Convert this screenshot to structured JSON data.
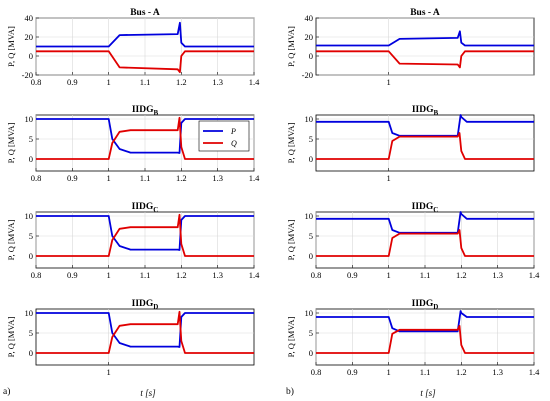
{
  "colors": {
    "P": "#0000dd",
    "Q": "#e00000"
  },
  "labels": {
    "xlabel": "t [s]",
    "ylabel": "P, Q [MVA]",
    "caption_a": "a)",
    "caption_b": "b)",
    "legend_p": "P",
    "legend_q": "Q"
  },
  "chart_data": [
    {
      "type": "line",
      "panel": "a1",
      "title": "Bus - A",
      "title_sub": "",
      "xlim": [
        0.8,
        1.4
      ],
      "ylim": [
        -20,
        40
      ],
      "xticks": [
        "0.8",
        "0.9",
        "1",
        "1.1",
        "1.2",
        "1.3",
        "1.4"
      ],
      "yticks": [
        "-20",
        "0",
        "20",
        "40"
      ],
      "ytick_values": [
        -20,
        0,
        20,
        40
      ],
      "xtick_values": [
        0.8,
        0.9,
        1.0,
        1.1,
        1.2,
        1.3,
        1.4
      ],
      "series": [
        {
          "key": "P",
          "x": [
            0.8,
            1.0,
            1.03,
            1.19,
            1.196,
            1.2,
            1.21,
            1.4
          ],
          "y": [
            10,
            10,
            22,
            23,
            35,
            14,
            10,
            10
          ]
        },
        {
          "key": "Q",
          "x": [
            0.8,
            1.0,
            1.03,
            1.19,
            1.196,
            1.2,
            1.21,
            1.4
          ],
          "y": [
            5,
            5,
            -12,
            -14,
            -17,
            0,
            5,
            5
          ]
        }
      ]
    },
    {
      "type": "line",
      "panel": "a2",
      "title": "IIDG",
      "title_sub": "B",
      "xlim": [
        0.8,
        1.4
      ],
      "ylim": [
        -3,
        11
      ],
      "xticks": [
        "0.8",
        "0.9",
        "1",
        "1.1",
        "1.2",
        "1.3",
        "1.4"
      ],
      "yticks": [
        "0",
        "5",
        "10"
      ],
      "ytick_values": [
        0,
        5,
        10
      ],
      "xtick_values": [
        0.8,
        0.9,
        1.0,
        1.1,
        1.2,
        1.3,
        1.4
      ],
      "legend": true,
      "series": [
        {
          "key": "P",
          "x": [
            0.8,
            1.0,
            1.01,
            1.03,
            1.06,
            1.19,
            1.195,
            1.2,
            1.21,
            1.4
          ],
          "y": [
            10,
            10,
            5,
            2.5,
            1.6,
            1.6,
            1.5,
            9,
            10,
            10
          ]
        },
        {
          "key": "Q",
          "x": [
            0.8,
            1.0,
            1.01,
            1.03,
            1.06,
            1.19,
            1.195,
            1.2,
            1.21,
            1.4
          ],
          "y": [
            0,
            0,
            4,
            6.8,
            7.2,
            7.2,
            10.3,
            3,
            0,
            0
          ]
        }
      ]
    },
    {
      "type": "line",
      "panel": "a3",
      "title": "IIDG",
      "title_sub": "C",
      "xlim": [
        0.8,
        1.4
      ],
      "ylim": [
        -3,
        11
      ],
      "xticks": [
        "0.8",
        "0.9",
        "1",
        "1.1",
        "1.2",
        "1.3",
        "1.4"
      ],
      "yticks": [
        "0",
        "5",
        "10"
      ],
      "ytick_values": [
        0,
        5,
        10
      ],
      "xtick_values": [
        0.8,
        0.9,
        1.0,
        1.1,
        1.2,
        1.3,
        1.4
      ],
      "series": [
        {
          "key": "P",
          "x": [
            0.8,
            1.0,
            1.01,
            1.03,
            1.06,
            1.19,
            1.195,
            1.2,
            1.21,
            1.4
          ],
          "y": [
            10,
            10,
            5,
            2.5,
            1.6,
            1.6,
            1.5,
            9,
            10,
            10
          ]
        },
        {
          "key": "Q",
          "x": [
            0.8,
            1.0,
            1.01,
            1.03,
            1.06,
            1.19,
            1.195,
            1.2,
            1.21,
            1.4
          ],
          "y": [
            0,
            0,
            4,
            6.8,
            7.2,
            7.2,
            10.3,
            3,
            0,
            0
          ]
        }
      ]
    },
    {
      "type": "line",
      "panel": "a4",
      "title": "IIDG",
      "title_sub": "D",
      "xlim": [
        0.8,
        1.4
      ],
      "ylim": [
        -3,
        11
      ],
      "xticks": [
        "1"
      ],
      "yticks": [
        "0",
        "5",
        "10"
      ],
      "ytick_values": [
        0,
        5,
        10
      ],
      "xtick_values": [
        1.0
      ],
      "series": [
        {
          "key": "P",
          "x": [
            0.8,
            1.0,
            1.01,
            1.03,
            1.06,
            1.19,
            1.195,
            1.2,
            1.21,
            1.4
          ],
          "y": [
            10,
            10,
            5,
            2.5,
            1.6,
            1.6,
            1.5,
            9,
            10,
            10
          ]
        },
        {
          "key": "Q",
          "x": [
            0.8,
            1.0,
            1.01,
            1.03,
            1.06,
            1.19,
            1.195,
            1.2,
            1.21,
            1.4
          ],
          "y": [
            0,
            0,
            4,
            6.8,
            7.2,
            7.2,
            10.3,
            3,
            0,
            0
          ]
        }
      ]
    },
    {
      "type": "line",
      "panel": "b1",
      "title": "Bus - A",
      "title_sub": "",
      "xlim": [
        0.8,
        1.4
      ],
      "ylim": [
        -20,
        40
      ],
      "xticks": [
        "1"
      ],
      "yticks": [
        "-20",
        "0",
        "20",
        "40"
      ],
      "ytick_values": [
        -20,
        0,
        20,
        40
      ],
      "xtick_values": [
        1.0
      ],
      "series": [
        {
          "key": "P",
          "x": [
            0.8,
            1.0,
            1.03,
            1.19,
            1.196,
            1.2,
            1.21,
            1.4
          ],
          "y": [
            11,
            11,
            18,
            19,
            26,
            14,
            11,
            11
          ]
        },
        {
          "key": "Q",
          "x": [
            0.8,
            1.0,
            1.03,
            1.19,
            1.196,
            1.2,
            1.21,
            1.4
          ],
          "y": [
            5,
            5,
            -8,
            -9,
            -12,
            0,
            5,
            5
          ]
        }
      ]
    },
    {
      "type": "line",
      "panel": "b2",
      "title": "IIDG",
      "title_sub": "B",
      "xlim": [
        0.8,
        1.4
      ],
      "ylim": [
        -3,
        11
      ],
      "xticks": [
        "1"
      ],
      "yticks": [
        "0",
        "5",
        "10"
      ],
      "ytick_values": [
        0,
        5,
        10
      ],
      "xtick_values": [
        1.0
      ],
      "series": [
        {
          "key": "P",
          "x": [
            0.8,
            1.0,
            1.01,
            1.03,
            1.19,
            1.198,
            1.2,
            1.215,
            1.4
          ],
          "y": [
            9.3,
            9.3,
            6.5,
            5.8,
            5.8,
            11,
            10.5,
            9.3,
            9.3
          ]
        },
        {
          "key": "Q",
          "x": [
            0.8,
            1.0,
            1.01,
            1.03,
            1.19,
            1.195,
            1.2,
            1.21,
            1.4
          ],
          "y": [
            0,
            0,
            4.5,
            5.6,
            5.6,
            6.5,
            2,
            0,
            0
          ]
        }
      ]
    },
    {
      "type": "line",
      "panel": "b3",
      "title": "IIDG",
      "title_sub": "C",
      "xlim": [
        0.8,
        1.4
      ],
      "ylim": [
        -3,
        11
      ],
      "xticks": [
        "0.8",
        "0.9",
        "1",
        "1.1",
        "1.2",
        "1.3",
        "1.4"
      ],
      "yticks": [
        "0",
        "5",
        "10"
      ],
      "ytick_values": [
        0,
        5,
        10
      ],
      "xtick_values": [
        0.8,
        0.9,
        1.0,
        1.1,
        1.2,
        1.3,
        1.4
      ],
      "series": [
        {
          "key": "P",
          "x": [
            0.8,
            1.0,
            1.01,
            1.03,
            1.19,
            1.198,
            1.2,
            1.215,
            1.4
          ],
          "y": [
            9.3,
            9.3,
            6.5,
            5.8,
            5.8,
            11,
            10.5,
            9.3,
            9.3
          ]
        },
        {
          "key": "Q",
          "x": [
            0.8,
            1.0,
            1.01,
            1.03,
            1.19,
            1.195,
            1.2,
            1.21,
            1.4
          ],
          "y": [
            0,
            0,
            4.5,
            5.6,
            5.6,
            6.5,
            2,
            0,
            0
          ]
        }
      ]
    },
    {
      "type": "line",
      "panel": "b4",
      "title": "IIDG",
      "title_sub": "D",
      "xlim": [
        0.8,
        1.4
      ],
      "ylim": [
        -3,
        11
      ],
      "xticks": [
        "0.8",
        "0.9",
        "1",
        "1.1",
        "1.2",
        "1.3",
        "1.4"
      ],
      "yticks": [
        "0",
        "5",
        "10"
      ],
      "ytick_values": [
        0,
        5,
        10
      ],
      "xtick_values": [
        0.8,
        0.9,
        1.0,
        1.1,
        1.2,
        1.3,
        1.4
      ],
      "series": [
        {
          "key": "P",
          "x": [
            0.8,
            1.0,
            1.01,
            1.03,
            1.19,
            1.198,
            1.2,
            1.215,
            1.4
          ],
          "y": [
            9.0,
            9.0,
            6.2,
            5.4,
            5.4,
            10.5,
            10,
            9.0,
            9.0
          ]
        },
        {
          "key": "Q",
          "x": [
            0.8,
            1.0,
            1.01,
            1.03,
            1.19,
            1.195,
            1.2,
            1.21,
            1.4
          ],
          "y": [
            0,
            0,
            4.8,
            5.8,
            5.8,
            6.8,
            2,
            0,
            0
          ]
        }
      ]
    }
  ]
}
